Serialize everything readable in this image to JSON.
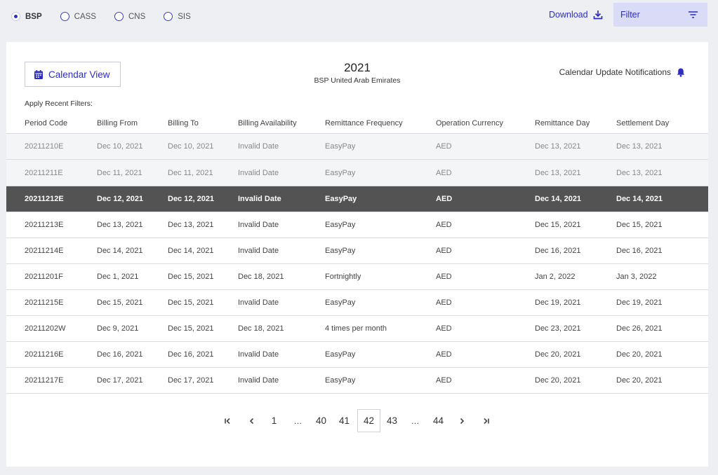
{
  "radio_options": [
    {
      "label": "BSP",
      "checked": true
    },
    {
      "label": "CASS",
      "checked": false
    },
    {
      "label": "CNS",
      "checked": false
    },
    {
      "label": "SIS",
      "checked": false
    }
  ],
  "toolbar": {
    "download_label": "Download",
    "filter_label": "Filter"
  },
  "card": {
    "calendar_view_label": "Calendar View",
    "year": "2021",
    "subtitle": "BSP United Arab Emirates",
    "notifications_label": "Calendar Update Notifications",
    "recent_filters_label": "Apply Recent Filters:"
  },
  "table": {
    "columns": [
      "Period Code",
      "Billing From",
      "Billing To",
      "Billing Availability",
      "Remittance Frequency",
      "Operation Currency",
      "Remittance Day",
      "Settlement Day"
    ],
    "rows": [
      {
        "state": "dim",
        "cells": [
          "20211210E",
          "Dec 10, 2021",
          "Dec 10, 2021",
          "Invalid Date",
          "EasyPay",
          "AED",
          "Dec 13, 2021",
          "Dec 13, 2021"
        ]
      },
      {
        "state": "dim",
        "cells": [
          "20211211E",
          "Dec 11, 2021",
          "Dec 11, 2021",
          "Invalid Date",
          "EasyPay",
          "AED",
          "Dec 13, 2021",
          "Dec 13, 2021"
        ]
      },
      {
        "state": "selected",
        "cells": [
          "20211212E",
          "Dec 12, 2021",
          "Dec 12, 2021",
          "Invalid Date",
          "EasyPay",
          "AED",
          "Dec 14, 2021",
          "Dec 14, 2021"
        ]
      },
      {
        "state": "normal",
        "cells": [
          "20211213E",
          "Dec 13, 2021",
          "Dec 13, 2021",
          "Invalid Date",
          "EasyPay",
          "AED",
          "Dec 15, 2021",
          "Dec 15, 2021"
        ]
      },
      {
        "state": "normal",
        "cells": [
          "20211214E",
          "Dec 14, 2021",
          "Dec 14, 2021",
          "Invalid Date",
          "EasyPay",
          "AED",
          "Dec 16, 2021",
          "Dec 16, 2021"
        ]
      },
      {
        "state": "normal",
        "cells": [
          "20211201F",
          "Dec 1, 2021",
          "Dec 15, 2021",
          "Dec 18, 2021",
          "Fortnightly",
          "AED",
          "Jan 2, 2022",
          "Jan 3, 2022"
        ]
      },
      {
        "state": "normal",
        "cells": [
          "20211215E",
          "Dec 15, 2021",
          "Dec 15, 2021",
          "Invalid Date",
          "EasyPay",
          "AED",
          "Dec 19, 2021",
          "Dec 19, 2021"
        ]
      },
      {
        "state": "normal",
        "cells": [
          "20211202W",
          "Dec 9, 2021",
          "Dec 15, 2021",
          "Dec 18, 2021",
          "4 times per month",
          "AED",
          "Dec 23, 2021",
          "Dec 26, 2021"
        ]
      },
      {
        "state": "normal",
        "cells": [
          "20211216E",
          "Dec 16, 2021",
          "Dec 16, 2021",
          "Invalid Date",
          "EasyPay",
          "AED",
          "Dec 20, 2021",
          "Dec 20, 2021"
        ]
      },
      {
        "state": "normal",
        "cells": [
          "20211217E",
          "Dec 17, 2021",
          "Dec 17, 2021",
          "Invalid Date",
          "EasyPay",
          "AED",
          "Dec 20, 2021",
          "Dec 20, 2021"
        ]
      }
    ]
  },
  "pagination": {
    "first_icon": "first-page-icon",
    "prev_icon": "chevron-left-icon",
    "next_icon": "chevron-right-icon",
    "last_icon": "last-page-icon",
    "pages": [
      "1",
      "…",
      "40",
      "41",
      "42",
      "43",
      "…",
      "44"
    ],
    "current": "42"
  },
  "colors": {
    "accent": "#2d2dbf",
    "background": "#eeeff3",
    "selected_row": "#535353",
    "filter_bg": "#dadbf7"
  }
}
